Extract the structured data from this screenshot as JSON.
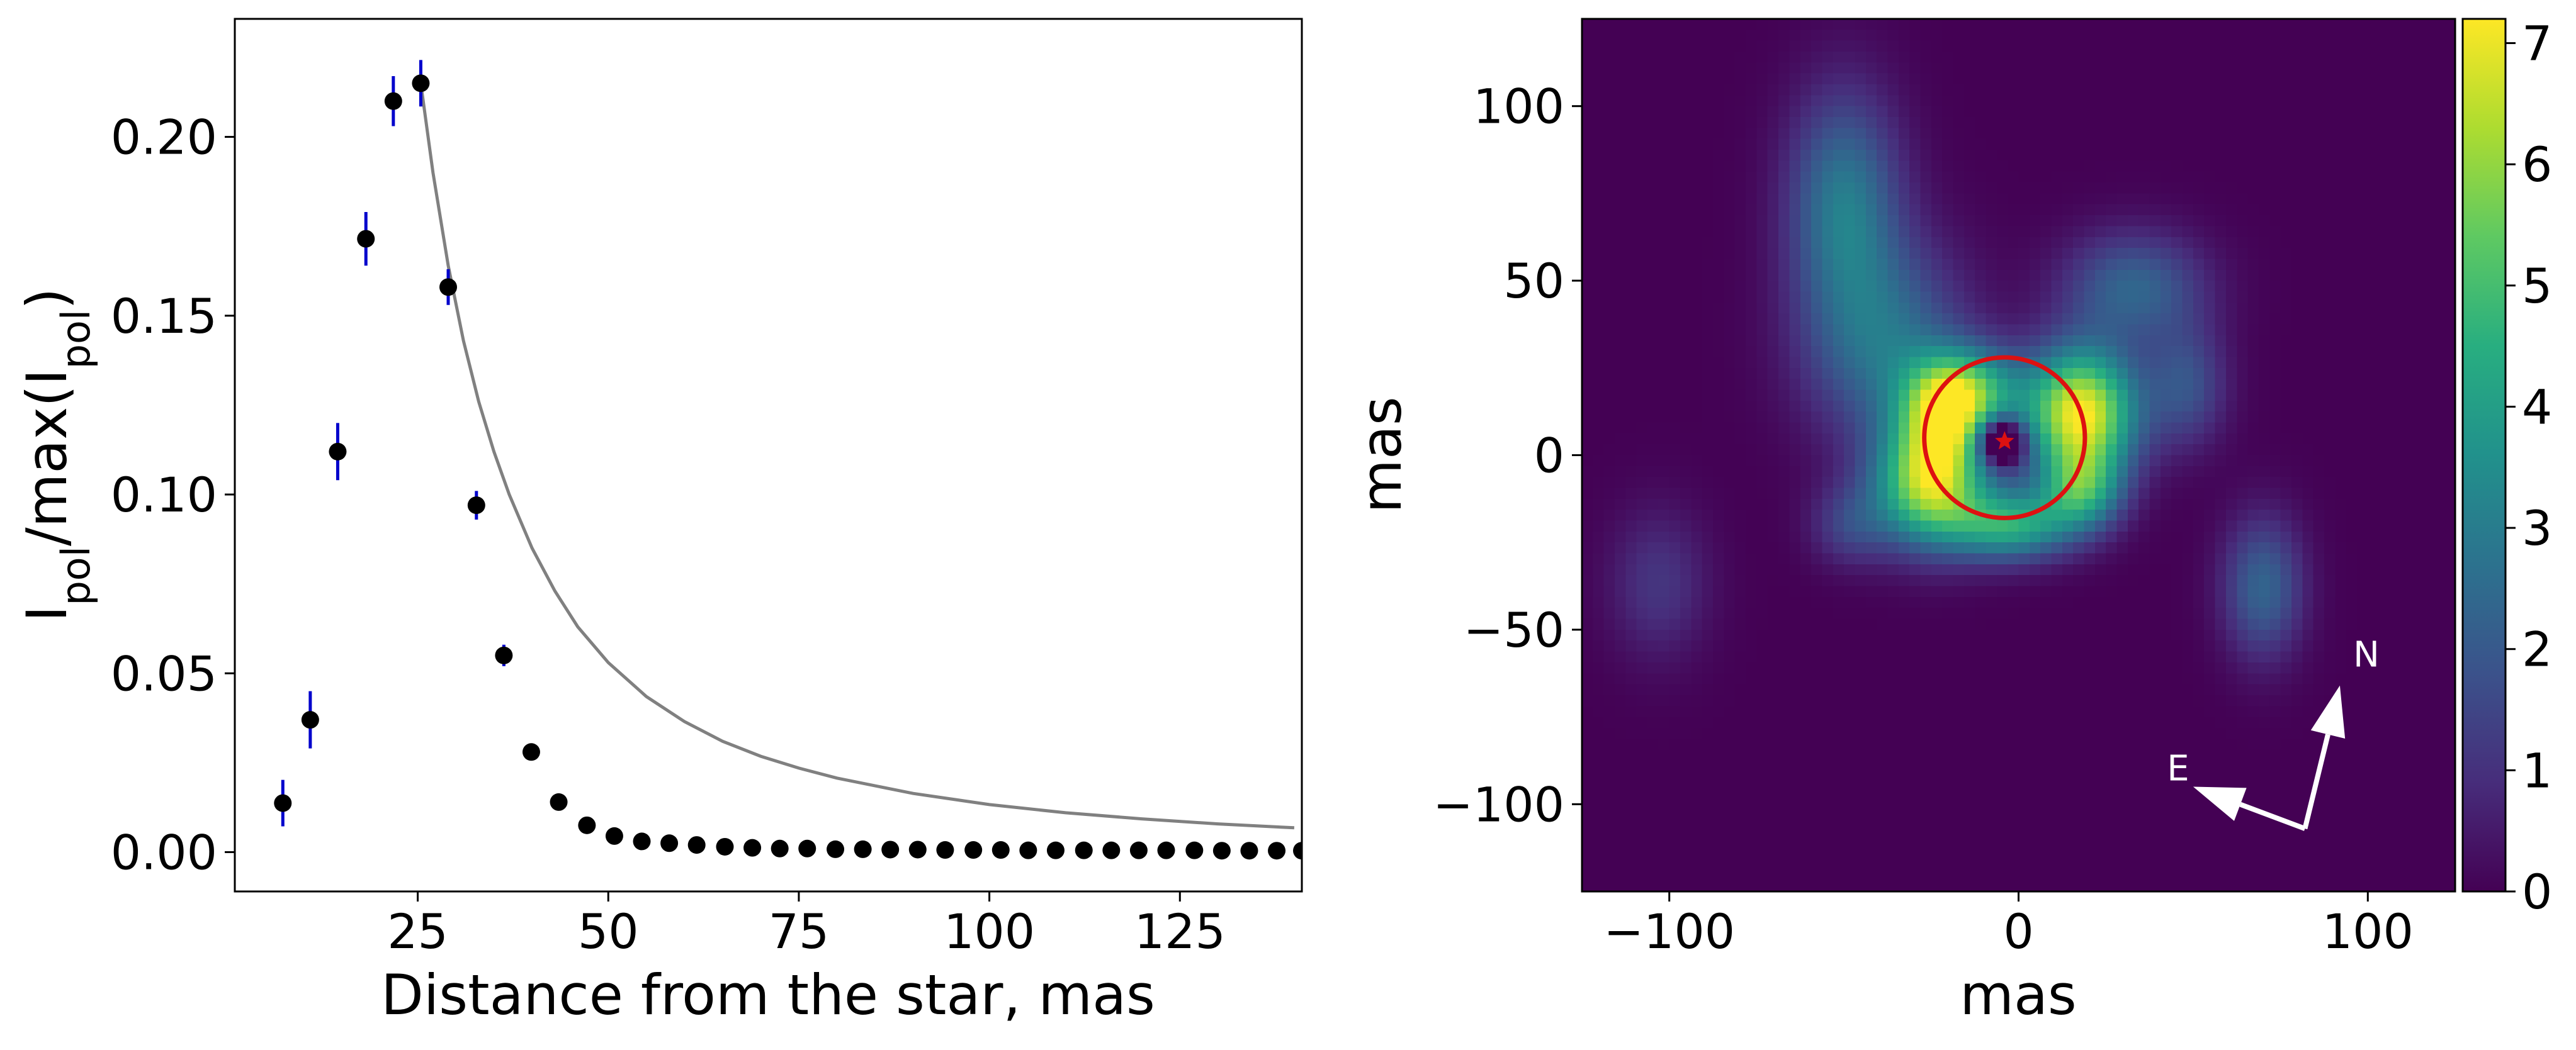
{
  "chart_data": [
    {
      "type": "scatter",
      "xlabel": "Distance from the star, mas",
      "ylabel": {
        "base": "I",
        "sub": "pol",
        "mid": "/max(I",
        "sub2": "pol",
        "end": ")"
      },
      "xlim": [
        1,
        141
      ],
      "ylim": [
        -0.011,
        0.233
      ],
      "xticks": [
        25,
        50,
        75,
        100,
        125
      ],
      "yticks": [
        0.0,
        0.05,
        0.1,
        0.15,
        0.2
      ],
      "ytick_labels": [
        "0.00",
        "0.05",
        "0.10",
        "0.15",
        "0.20"
      ],
      "marker_color": "#000000",
      "errorbar_color": "#0000cc",
      "model_color": "#808080",
      "series": [
        {
          "type": "scatter",
          "x": [
            7.3,
            10.9,
            14.5,
            18.2,
            21.8,
            25.4,
            29.0,
            32.7,
            36.3,
            39.9,
            43.5,
            47.2,
            50.8,
            54.4,
            58.0,
            61.6,
            65.3,
            68.9,
            72.5,
            76.1,
            79.8,
            83.4,
            87.0,
            90.6,
            94.2,
            97.9,
            101.5,
            105.1,
            108.7,
            112.4,
            116.0,
            119.6,
            123.2,
            126.9,
            130.5,
            134.1,
            137.7,
            141.0
          ],
          "y": [
            0.0137,
            0.037,
            0.112,
            0.1715,
            0.21,
            0.215,
            0.158,
            0.097,
            0.055,
            0.028,
            0.014,
            0.0075,
            0.0045,
            0.003,
            0.0025,
            0.002,
            0.0015,
            0.0012,
            0.001,
            0.001,
            0.0008,
            0.0008,
            0.0007,
            0.0007,
            0.0006,
            0.0006,
            0.0006,
            0.0005,
            0.0005,
            0.0005,
            0.0005,
            0.0005,
            0.0005,
            0.0005,
            0.0004,
            0.0004,
            0.0004,
            0.0004
          ],
          "yerr": [
            0.0065,
            0.008,
            0.008,
            0.0075,
            0.007,
            0.0065,
            0.005,
            0.004,
            0.003,
            0.0,
            0.0,
            0.0,
            0.0,
            0.0,
            0.0,
            0.0,
            0.0,
            0.0,
            0.0,
            0.0,
            0.0,
            0.0,
            0.0,
            0.0,
            0.0,
            0.0,
            0.0,
            0.0,
            0.0,
            0.0,
            0.0,
            0.0,
            0.0,
            0.0,
            0.0,
            0.0,
            0.0,
            0.0
          ]
        },
        {
          "type": "line",
          "x": [
            25.4,
            27,
            29,
            31,
            33,
            35,
            37,
            40,
            43,
            46,
            50,
            55,
            60,
            65,
            70,
            75,
            80,
            90,
            100,
            110,
            120,
            130,
            140
          ],
          "y": [
            0.215,
            0.19,
            0.164,
            0.143,
            0.126,
            0.112,
            0.1,
            0.085,
            0.073,
            0.063,
            0.053,
            0.0435,
            0.0365,
            0.031,
            0.0268,
            0.0235,
            0.0207,
            0.0164,
            0.0133,
            0.011,
            0.0093,
            0.0079,
            0.0068
          ]
        }
      ]
    },
    {
      "type": "heatmap",
      "xlabel": "mas",
      "ylabel": "mas",
      "xlim": [
        -125,
        125
      ],
      "ylim": [
        -125,
        125
      ],
      "xticks": [
        -100,
        0,
        100
      ],
      "xtick_labels": [
        "−100",
        "0",
        "100"
      ],
      "yticks": [
        -100,
        -50,
        0,
        50,
        100
      ],
      "ytick_labels": [
        "−100",
        "−50",
        "0",
        "50",
        "100"
      ],
      "colorbar": {
        "vmin": 0,
        "vmax": 7.2,
        "ticks": [
          0,
          1,
          2,
          3,
          4,
          5,
          6,
          7
        ],
        "colormap": "viridis"
      },
      "components": [
        {
          "cx": 18,
          "cy": 12,
          "sx": 11,
          "sy": 13,
          "amp": 7.2
        },
        {
          "cx": -25,
          "cy": -8,
          "sx": 11,
          "sy": 12,
          "amp": 6.3
        },
        {
          "cx": -15,
          "cy": 18,
          "sx": 11,
          "sy": 9,
          "amp": 4.6
        },
        {
          "cx": 18,
          "cy": -10,
          "sx": 8,
          "sy": 8,
          "amp": 3.6
        },
        {
          "cx": -2,
          "cy": -20,
          "sx": 12,
          "sy": 7,
          "amp": 4.2
        },
        {
          "cx": -22,
          "cy": 10,
          "sx": 8,
          "sy": 10,
          "amp": 3.2
        },
        {
          "cx": -5,
          "cy": 4,
          "sx": 4.5,
          "sy": 4.5,
          "amp": -4.8
        },
        {
          "cx": -50,
          "cy": 72,
          "sx": 11,
          "sy": 22,
          "amp": 2.9
        },
        {
          "cx": -38,
          "cy": 32,
          "sx": 16,
          "sy": 20,
          "amp": 2.6
        },
        {
          "cx": 33,
          "cy": 48,
          "sx": 14,
          "sy": 11,
          "amp": 2.3
        },
        {
          "cx": 48,
          "cy": 20,
          "sx": 8,
          "sy": 12,
          "amp": 1.8
        },
        {
          "cx": 70,
          "cy": -38,
          "sx": 8,
          "sy": 14,
          "amp": 2.3
        },
        {
          "cx": -103,
          "cy": -37,
          "sx": 10,
          "sy": 15,
          "amp": 1.1
        },
        {
          "cx": -48,
          "cy": -20,
          "sx": 8,
          "sy": 8,
          "amp": 1.4
        }
      ],
      "circle": {
        "cx": -4,
        "cy": 5,
        "r": 23,
        "color": "#dd1111"
      },
      "star": {
        "x": -4,
        "y": 4,
        "color": "#dd1111"
      },
      "compass": {
        "origin": [
          82,
          -107
        ],
        "north": {
          "label": "N",
          "tip": [
            92,
            -66
          ]
        },
        "east": {
          "label": "E",
          "tip": [
            50,
            -95
          ]
        },
        "color": "#ffffff"
      }
    }
  ]
}
